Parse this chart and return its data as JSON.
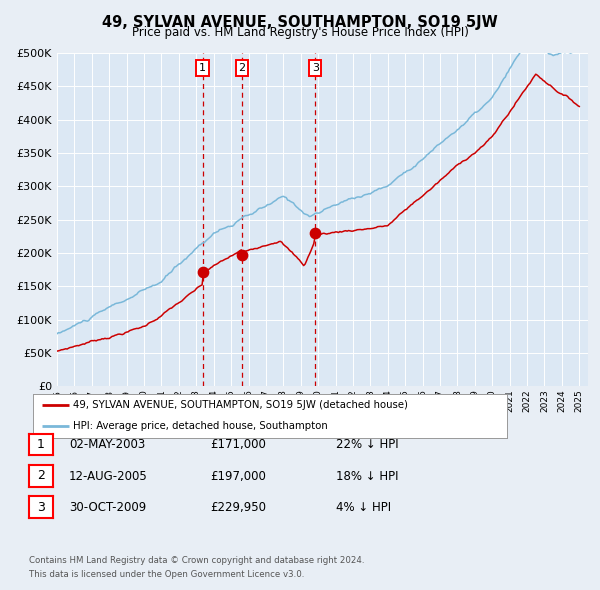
{
  "title": "49, SYLVAN AVENUE, SOUTHAMPTON, SO19 5JW",
  "subtitle": "Price paid vs. HM Land Registry's House Price Index (HPI)",
  "legend_line1": "49, SYLVAN AVENUE, SOUTHAMPTON, SO19 5JW (detached house)",
  "legend_line2": "HPI: Average price, detached house, Southampton",
  "footer1": "Contains HM Land Registry data © Crown copyright and database right 2024.",
  "footer2": "This data is licensed under the Open Government Licence v3.0.",
  "sales": [
    {
      "label": "1",
      "date": "02-MAY-2003",
      "price": 171000,
      "pct": "22%",
      "dir": "↓",
      "year": 2003.37
    },
    {
      "label": "2",
      "date": "12-AUG-2005",
      "price": 197000,
      "pct": "18%",
      "dir": "↓",
      "year": 2005.62
    },
    {
      "label": "3",
      "date": "30-OCT-2009",
      "price": 229950,
      "pct": "4%",
      "dir": "↓",
      "year": 2009.83
    }
  ],
  "hpi_color": "#7ab8d9",
  "sale_color": "#cc0000",
  "bg_color": "#e8eef5",
  "plot_bg": "#dce8f4",
  "grid_color": "#ffffff",
  "vline_color": "#cc0000",
  "ylim": [
    0,
    500000
  ],
  "yticks": [
    0,
    50000,
    100000,
    150000,
    200000,
    250000,
    300000,
    350000,
    400000,
    450000,
    500000
  ],
  "xmin": 1995,
  "xmax": 2025.5
}
